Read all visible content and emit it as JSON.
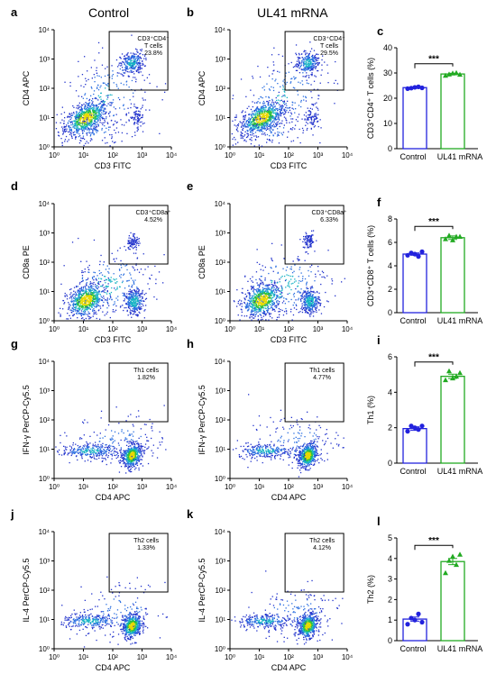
{
  "headers": {
    "control": "Control",
    "treatment": "UL41 mRNA"
  },
  "colors": {
    "control": "#2222dd",
    "treatment": "#22aa22",
    "gate": "#000000"
  },
  "flow_axis_ticks": [
    "10⁰",
    "10¹",
    "10²",
    "10³",
    "10⁴"
  ],
  "flow_panels": [
    {
      "letter": "a",
      "xlabel": "CD3 FITC",
      "ylabel": "CD4 APC",
      "gate_label": "CD3⁺CD4⁺ T cells",
      "gate_value": "23.8%",
      "shape": "cd4"
    },
    {
      "letter": "b",
      "xlabel": "CD3 FITC",
      "ylabel": "CD4 APC",
      "gate_label": "CD3⁺CD4⁺ T cells",
      "gate_value": "29.5%",
      "shape": "cd4"
    },
    {
      "letter": "d",
      "xlabel": "CD3 FITC",
      "ylabel": "CD8a PE",
      "gate_label": "CD3⁺CD8a⁺",
      "gate_value": "4.52%",
      "shape": "cd8"
    },
    {
      "letter": "e",
      "xlabel": "CD3 FITC",
      "ylabel": "CD8a PE",
      "gate_label": "CD3⁺CD8a⁺",
      "gate_value": "6.33%",
      "shape": "cd8"
    },
    {
      "letter": "g",
      "xlabel": "CD4 APC",
      "ylabel": "IFN-γ PerCP-Cy5.5",
      "gate_label": "Th1 cells",
      "gate_value": "1.82%",
      "shape": "th"
    },
    {
      "letter": "h",
      "xlabel": "CD4 APC",
      "ylabel": "IFN-γ PerCP-Cy5.5",
      "gate_label": "Th1 cells",
      "gate_value": "4.77%",
      "shape": "th"
    },
    {
      "letter": "j",
      "xlabel": "CD4 APC",
      "ylabel": "IL-4 PerCP-Cy5.5",
      "gate_label": "Th2 cells",
      "gate_value": "1.33%",
      "shape": "th"
    },
    {
      "letter": "k",
      "xlabel": "CD4 APC",
      "ylabel": "IL-4 PerCP-Cy5.5",
      "gate_label": "Th2 cells",
      "gate_value": "4.12%",
      "shape": "th"
    }
  ],
  "chart_data": [
    {
      "letter": "c",
      "type": "bar",
      "categories": [
        "Control",
        "UL41 mRNA"
      ],
      "ylabel": "CD3⁺CD4⁺ T cells (%)",
      "ylim": [
        0,
        40
      ],
      "yticks": [
        0,
        10,
        20,
        30,
        40
      ],
      "means": [
        24.2,
        29.6
      ],
      "sem": [
        0.3,
        0.3
      ],
      "points": [
        [
          23.8,
          24.0,
          24.3,
          24.5,
          24.1
        ],
        [
          29.0,
          29.5,
          29.9,
          30.1,
          29.4
        ]
      ],
      "significance": "***"
    },
    {
      "letter": "f",
      "type": "bar",
      "categories": [
        "Control",
        "UL41 mRNA"
      ],
      "ylabel": "CD3⁺CD8⁺ T cells (%)",
      "ylim": [
        0,
        8
      ],
      "yticks": [
        0,
        2,
        4,
        6,
        8
      ],
      "means": [
        5.0,
        6.4
      ],
      "sem": [
        0.1,
        0.15
      ],
      "points": [
        [
          4.9,
          5.1,
          5.0,
          4.8,
          5.2
        ],
        [
          6.3,
          6.6,
          6.2,
          6.5,
          6.5
        ]
      ],
      "significance": "***"
    },
    {
      "letter": "i",
      "type": "bar",
      "categories": [
        "Control",
        "UL41 mRNA"
      ],
      "ylabel": "Th1 (%)",
      "ylim": [
        0,
        6
      ],
      "yticks": [
        0,
        2,
        4,
        6
      ],
      "means": [
        1.95,
        4.9
      ],
      "sem": [
        0.1,
        0.12
      ],
      "points": [
        [
          1.8,
          2.1,
          2.0,
          1.9,
          2.1
        ],
        [
          4.7,
          5.2,
          4.8,
          4.9,
          5.1
        ]
      ],
      "significance": "***"
    },
    {
      "letter": "l",
      "type": "bar",
      "categories": [
        "Control",
        "UL41 mRNA"
      ],
      "ylabel": "Th2 (%)",
      "ylim": [
        0,
        5
      ],
      "yticks": [
        0,
        1,
        2,
        3,
        4,
        5
      ],
      "means": [
        1.05,
        3.85
      ],
      "sem": [
        0.1,
        0.15
      ],
      "points": [
        [
          0.8,
          1.1,
          1.0,
          1.3,
          0.9
        ],
        [
          3.3,
          3.9,
          4.1,
          3.7,
          4.2
        ]
      ],
      "significance": "***"
    }
  ]
}
